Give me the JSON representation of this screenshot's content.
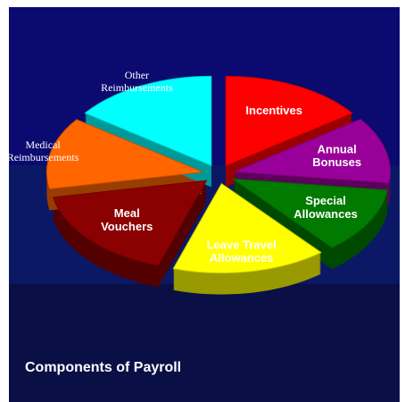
{
  "chart_data": {
    "type": "pie",
    "title": "Components of Payroll",
    "categories": [
      "Incentives",
      "Annual Bonuses",
      "Special Allowances",
      "Leave Travel Allowances",
      "Meal Vouchers",
      "Medical Reimbursements",
      "Other Reimbursements"
    ],
    "values": [
      15,
      12,
      12,
      16,
      17,
      13,
      15
    ],
    "colors": [
      "#ff0000",
      "#990099",
      "#007a00",
      "#ffff00",
      "#8b0000",
      "#ff6600",
      "#00ffff"
    ]
  }
}
